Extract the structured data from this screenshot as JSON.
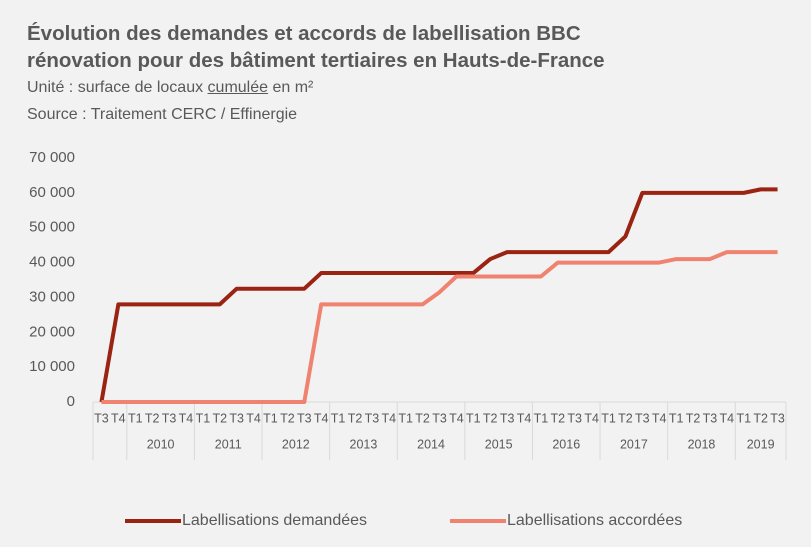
{
  "chart_data": {
    "type": "line",
    "title": [
      "Évolution des demandes et accords de labellisation BBC",
      "rénovation pour des bâtiment tertiaires en Hauts-de-France"
    ],
    "subtitle": [
      "Unité : surface de locaux ",
      "cumulée",
      " en m²"
    ],
    "source": "Source : Traitement CERC / Effinergie",
    "categories": [
      "T3",
      "T4",
      "T1",
      "T2",
      "T3",
      "T4",
      "T1",
      "T2",
      "T3",
      "T4",
      "T1",
      "T2",
      "T3",
      "T4",
      "T1",
      "T2",
      "T3",
      "T4",
      "T1",
      "T2",
      "T3",
      "T4",
      "T1",
      "T2",
      "T3",
      "T4",
      "T1",
      "T2",
      "T3",
      "T4",
      "T1",
      "T2",
      "T3",
      "T4",
      "T1",
      "T2",
      "T3",
      "T4",
      "T1",
      "T2",
      "T3"
    ],
    "years": [
      null,
      null,
      "2010",
      "2010",
      "2010",
      "2010",
      "2011",
      "2011",
      "2011",
      "2011",
      "2012",
      "2012",
      "2012",
      "2012",
      "2013",
      "2013",
      "2013",
      "2013",
      "2014",
      "2014",
      "2014",
      "2014",
      "2015",
      "2015",
      "2015",
      "2015",
      "2016",
      "2016",
      "2016",
      "2016",
      "2017",
      "2017",
      "2017",
      "2017",
      "2018",
      "2018",
      "2018",
      "2018",
      "2019",
      "2019",
      "2019"
    ],
    "series": [
      {
        "name": "Labellisations demandées",
        "color": "#9a2312",
        "values": [
          0,
          28000,
          28000,
          28000,
          28000,
          28000,
          28000,
          28000,
          32500,
          32500,
          32500,
          32500,
          32500,
          37000,
          37000,
          37000,
          37000,
          37000,
          37000,
          37000,
          37000,
          37000,
          37000,
          41000,
          43000,
          43000,
          43000,
          43000,
          43000,
          43000,
          43000,
          47500,
          60000,
          60000,
          60000,
          60000,
          60000,
          60000,
          60000,
          61000,
          61000
        ]
      },
      {
        "name": "Labellisations accordées",
        "color": "#f08270",
        "values": [
          0,
          0,
          0,
          0,
          0,
          0,
          0,
          0,
          0,
          0,
          0,
          0,
          0,
          28000,
          28000,
          28000,
          28000,
          28000,
          28000,
          28000,
          31500,
          36000,
          36000,
          36000,
          36000,
          36000,
          36000,
          40000,
          40000,
          40000,
          40000,
          40000,
          40000,
          40000,
          41000,
          41000,
          41000,
          43000,
          43000,
          43000,
          43000
        ]
      }
    ],
    "ylim": [
      0,
      70000
    ],
    "yticks": [
      0,
      {
        "value": 10000,
        "label": "10 000"
      },
      {
        "value": 20000,
        "label": "20 000"
      },
      {
        "value": 30000,
        "label": "30 000"
      },
      {
        "value": 40000,
        "label": "40 000"
      },
      {
        "value": 50000,
        "label": "50 000"
      },
      {
        "value": 60000,
        "label": "60 000"
      },
      {
        "value": 70000,
        "label": "70 000"
      }
    ],
    "grid": false,
    "legend": "bottom"
  }
}
